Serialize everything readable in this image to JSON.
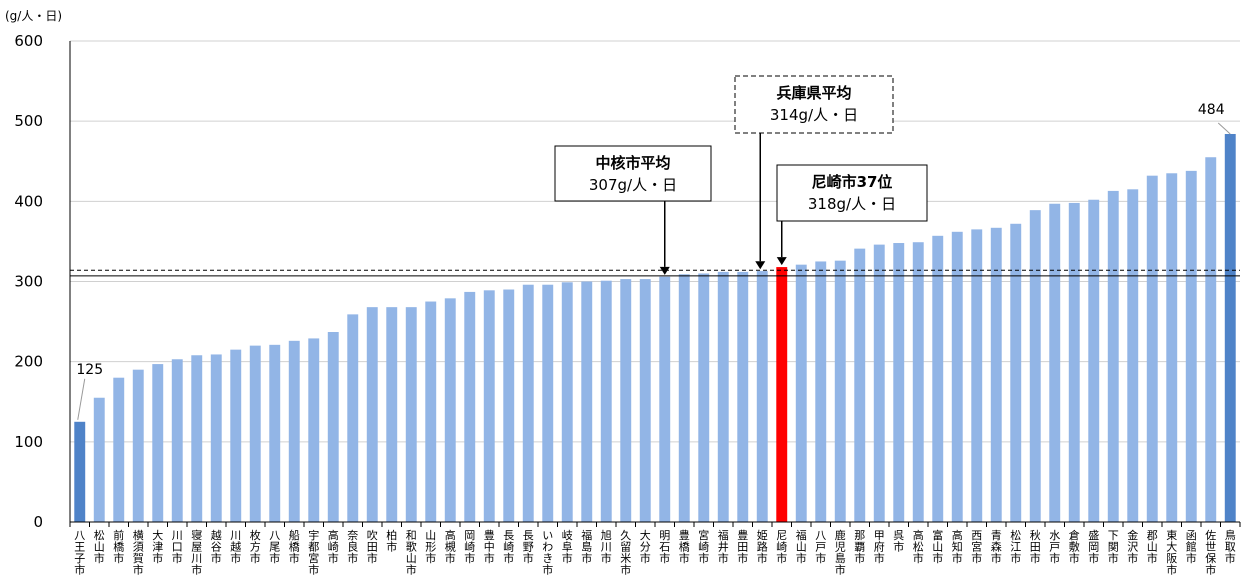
{
  "chart_data": {
    "type": "bar",
    "unit_label": "(g/人・日)",
    "ylim": [
      0,
      600
    ],
    "yticks": [
      0,
      100,
      200,
      300,
      400,
      500,
      600
    ],
    "grid": true,
    "categories": [
      "八王子市",
      "松山市",
      "前橋市",
      "横須賀市",
      "大津市",
      "川口市",
      "寝屋川市",
      "越谷市",
      "川越市",
      "枚方市",
      "八尾市",
      "船橋市",
      "宇都宮市",
      "高崎市",
      "奈良市",
      "吹田市",
      "柏市",
      "和歌山市",
      "山形市",
      "高槻市",
      "岡崎市",
      "豊中市",
      "長崎市",
      "長野市",
      "いわき市",
      "岐阜市",
      "福島市",
      "旭川市",
      "久留米市",
      "大分市",
      "明石市",
      "豊橋市",
      "宮崎市",
      "福井市",
      "豊田市",
      "姫路市",
      "尼崎市",
      "福山市",
      "八戸市",
      "鹿児島市",
      "那覇市",
      "甲府市",
      "呉市",
      "高松市",
      "富山市",
      "高知市",
      "西宮市",
      "青森市",
      "松江市",
      "秋田市",
      "水戸市",
      "倉敷市",
      "盛岡市",
      "下関市",
      "金沢市",
      "郡山市",
      "東大阪市",
      "函館市",
      "佐世保市",
      "鳥取市"
    ],
    "values": [
      125,
      155,
      180,
      190,
      197,
      203,
      208,
      209,
      215,
      220,
      221,
      226,
      229,
      237,
      259,
      268,
      268,
      268,
      275,
      279,
      287,
      289,
      290,
      296,
      296,
      299,
      300,
      301,
      303,
      303,
      306,
      309,
      310,
      312,
      312,
      313,
      318,
      321,
      325,
      326,
      341,
      346,
      348,
      349,
      357,
      362,
      365,
      367,
      372,
      389,
      397,
      398,
      402,
      413,
      415,
      432,
      435,
      438,
      455,
      484
    ],
    "highlight_index": 36,
    "emphasis_indices": [
      0,
      59
    ],
    "colors": {
      "bar": "#92b5e6",
      "highlight": "#ff0000",
      "emphasis": "#4f83c8"
    },
    "data_labels": [
      {
        "index": 0,
        "text": "125"
      },
      {
        "index": 59,
        "text": "484"
      }
    ],
    "reference_lines": [
      {
        "name": "中核市平均",
        "value": 307,
        "style": "solid"
      },
      {
        "name": "兵庫県平均",
        "value": 314,
        "style": "dashed"
      }
    ],
    "annotations": [
      {
        "id": "chukaku",
        "line1": "中核市平均",
        "line2": "307g/人・日",
        "target_index": 30,
        "border": "solid"
      },
      {
        "id": "hyogo",
        "line1": "兵庫県平均",
        "line2": "314g/人・日",
        "target_index": 35,
        "border": "dashed"
      },
      {
        "id": "amagasaki",
        "line1": "尼崎市37位",
        "line2": "318g/人・日",
        "target_index": 36,
        "border": "solid"
      }
    ]
  }
}
